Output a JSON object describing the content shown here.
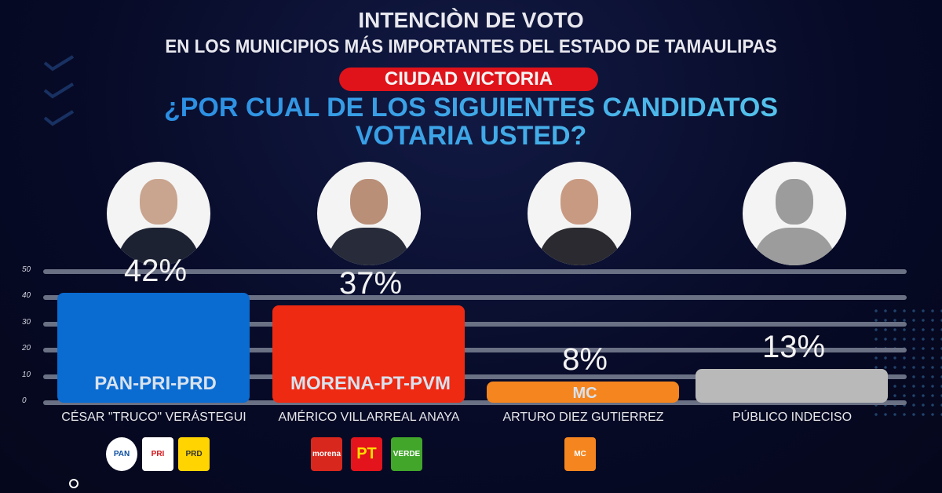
{
  "title": "INTENCIÒN DE VOTO",
  "subtitle": "EN LOS MUNICIPIOS MÁS IMPORTANTES DEL ESTADO DE TAMAULIPAS",
  "city": "CIUDAD VICTORIA",
  "question_line1": "¿POR CUAL DE LOS SIGUIENTES CANDIDATOS",
  "question_line2": "VOTARIA USTED?",
  "colors": {
    "blue": "#0a6bd1",
    "red": "#ee2a12",
    "orange": "#f5851f",
    "gray": "#b9b9b9"
  },
  "chart_data": {
    "type": "bar",
    "title": "INTENCIÒN DE VOTO",
    "categories": [
      "CÉSAR \"TRUCO\" VERÁSTEGUI",
      "AMÉRICO VILLARREAL ANAYA",
      "ARTURO DIEZ GUTIERREZ",
      "PÚBLICO INDECISO"
    ],
    "values": [
      42,
      37,
      8,
      13
    ],
    "value_labels": [
      "42%",
      "37%",
      "8%",
      "13%"
    ],
    "parties": [
      "PAN-PRI-PRD",
      "MORENA-PT-PVM",
      "MC",
      ""
    ],
    "ylim": [
      0,
      50
    ],
    "yticks": [
      "0",
      "10",
      "20",
      "30",
      "40",
      "50"
    ],
    "grid": true,
    "xlabel": "",
    "ylabel": ""
  },
  "logos": [
    {
      "text": "PAN",
      "bg": "#ffffff",
      "fg": "#0b4ea2"
    },
    {
      "text": "PRI",
      "bg": "#ffffff",
      "fg": "#d4161b"
    },
    {
      "text": "PRD",
      "bg": "#ffd400",
      "fg": "#333333"
    },
    {
      "text": "morena",
      "bg": "#d8271d",
      "fg": "#ffffff"
    },
    {
      "text": "PT",
      "bg": "#e3141b",
      "fg": "#ffdd00"
    },
    {
      "text": "VERDE",
      "bg": "#41a62a",
      "fg": "#ffffff"
    },
    {
      "text": "MC",
      "bg": "#f5851f",
      "fg": "#ffffff"
    }
  ]
}
